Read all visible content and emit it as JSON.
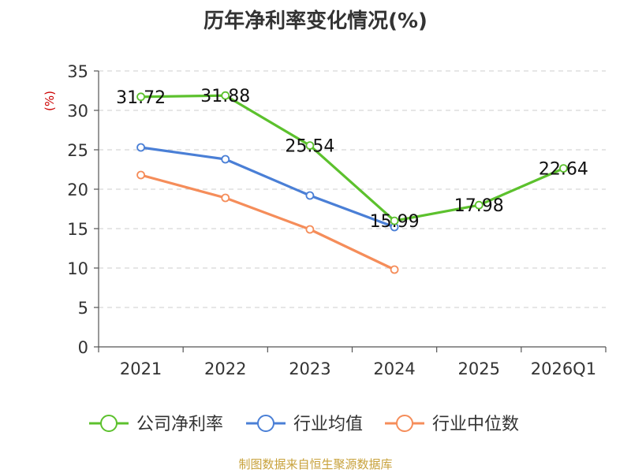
{
  "chart_data": {
    "type": "line",
    "title": "历年净利率变化情况(%)",
    "ylabel": "(%)",
    "xlabel": "",
    "categories": [
      "2021",
      "2022",
      "2023",
      "2024",
      "2025",
      "2026Q1"
    ],
    "ylim": [
      0,
      35
    ],
    "yticks": [
      0,
      5,
      10,
      15,
      20,
      25,
      30,
      35
    ],
    "grid": true,
    "legend_position": "bottom",
    "series": [
      {
        "name": "公司净利率",
        "color": "#5cc12d",
        "values": [
          31.72,
          31.88,
          25.54,
          15.99,
          17.98,
          22.64
        ],
        "labels": [
          "31.72",
          "31.88",
          "25.54",
          "15.99",
          "17.98",
          "22.64"
        ]
      },
      {
        "name": "行业均值",
        "color": "#4a7fd6",
        "values": [
          25.3,
          23.8,
          19.2,
          15.2,
          null,
          null
        ]
      },
      {
        "name": "行业中位数",
        "color": "#f58d5a",
        "values": [
          21.8,
          18.9,
          14.9,
          9.8,
          null,
          null
        ]
      }
    ]
  },
  "footer": {
    "source": "制图数据来自恒生聚源数据库"
  }
}
